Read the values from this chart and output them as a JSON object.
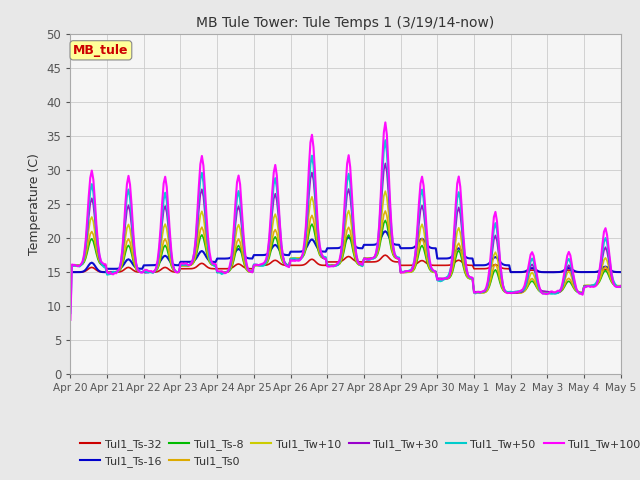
{
  "title": "MB Tule Tower: Tule Temps 1 (3/19/14-now)",
  "ylabel": "Temperature (C)",
  "ylim": [
    0,
    50
  ],
  "yticks": [
    0,
    5,
    10,
    15,
    20,
    25,
    30,
    35,
    40,
    45,
    50
  ],
  "xlabel_dates": [
    "Apr 20",
    "Apr 21",
    "Apr 22",
    "Apr 23",
    "Apr 24",
    "Apr 25",
    "Apr 26",
    "Apr 27",
    "Apr 28",
    "Apr 29",
    "Apr 30",
    "May 1",
    "May 2",
    "May 3",
    "May 4",
    "May 5"
  ],
  "series": [
    {
      "label": "Tul1_Ts-32",
      "color": "#cc0000",
      "lw": 1.2
    },
    {
      "label": "Tul1_Ts-16",
      "color": "#0000cc",
      "lw": 1.5
    },
    {
      "label": "Tul1_Ts-8",
      "color": "#00bb00",
      "lw": 1.2
    },
    {
      "label": "Tul1_Ts0",
      "color": "#ddaa00",
      "lw": 1.2
    },
    {
      "label": "Tul1_Tw+10",
      "color": "#cccc00",
      "lw": 1.2
    },
    {
      "label": "Tul1_Tw+30",
      "color": "#9900cc",
      "lw": 1.2
    },
    {
      "label": "Tul1_Tw+50",
      "color": "#00cccc",
      "lw": 1.5
    },
    {
      "label": "Tul1_Tw+100",
      "color": "#ff00ff",
      "lw": 1.5
    }
  ],
  "legend_box_color": "#ffff99",
  "legend_box_text": "MB_tule",
  "background_color": "#e8e8e8",
  "plot_bg_color": "#f5f5f5",
  "grid_color": "#cccccc",
  "figsize": [
    6.4,
    4.8
  ],
  "dpi": 100
}
